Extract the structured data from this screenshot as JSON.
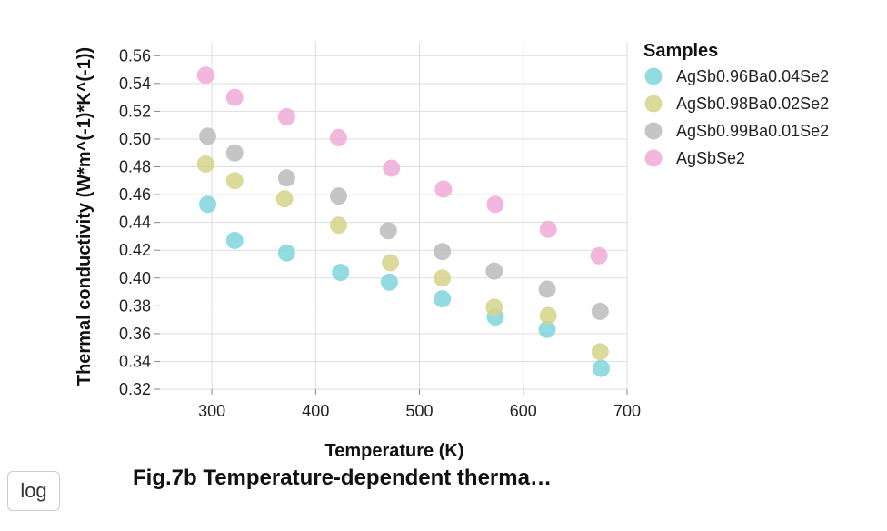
{
  "controls": {
    "log_label": "log"
  },
  "caption": "Fig.7b Temperature-dependent therma…",
  "chart_data": {
    "type": "scatter",
    "title": "",
    "xlabel": "Temperature (K)",
    "ylabel": "Thermal conductivity (W*m^(-1)*K^(-1))",
    "xlim": [
      250,
      700
    ],
    "ylim": [
      0.32,
      0.57
    ],
    "xticks": [
      300,
      400,
      500,
      600,
      700
    ],
    "yticks": [
      0.32,
      0.34,
      0.36,
      0.38,
      0.4,
      0.42,
      0.44,
      0.46,
      0.48,
      0.5,
      0.52,
      0.54,
      0.56
    ],
    "grid": true,
    "legend": {
      "title": "Samples",
      "placement": "right"
    },
    "series": [
      {
        "name": "AgSb0.96Ba0.04Se2",
        "color": "#7fd6dc",
        "points": [
          [
            296,
            0.453
          ],
          [
            322,
            0.427
          ],
          [
            372,
            0.418
          ],
          [
            424,
            0.404
          ],
          [
            471,
            0.397
          ],
          [
            522,
            0.385
          ],
          [
            573,
            0.372
          ],
          [
            623,
            0.363
          ],
          [
            675,
            0.335
          ]
        ]
      },
      {
        "name": "AgSb0.98Ba0.02Se2",
        "color": "#d5d38a",
        "points": [
          [
            294,
            0.482
          ],
          [
            322,
            0.47
          ],
          [
            370,
            0.457
          ],
          [
            422,
            0.438
          ],
          [
            472,
            0.411
          ],
          [
            522,
            0.4
          ],
          [
            572,
            0.379
          ],
          [
            624,
            0.373
          ],
          [
            674,
            0.347
          ]
        ]
      },
      {
        "name": "AgSb0.99Ba0.01Se2",
        "color": "#bbbbbb",
        "points": [
          [
            296,
            0.502
          ],
          [
            322,
            0.49
          ],
          [
            372,
            0.472
          ],
          [
            422,
            0.459
          ],
          [
            470,
            0.434
          ],
          [
            522,
            0.419
          ],
          [
            572,
            0.405
          ],
          [
            623,
            0.392
          ],
          [
            674,
            0.376
          ]
        ]
      },
      {
        "name": "AgSbSe2",
        "color": "#eeaad6",
        "points": [
          [
            294,
            0.546
          ],
          [
            322,
            0.53
          ],
          [
            372,
            0.516
          ],
          [
            422,
            0.501
          ],
          [
            473,
            0.479
          ],
          [
            523,
            0.464
          ],
          [
            573,
            0.453
          ],
          [
            624,
            0.435
          ],
          [
            673,
            0.416
          ]
        ]
      }
    ]
  }
}
